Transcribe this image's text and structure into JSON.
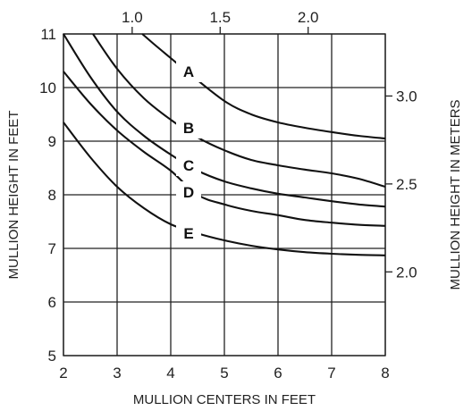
{
  "chart_data": {
    "type": "line",
    "title": "",
    "xlabel": "MULLION CENTERS IN FEET",
    "ylabel": "MULLION HEIGHT IN FEET",
    "ylabel_right": "MULLION HEIGHT IN METERS",
    "xlim": [
      2,
      8
    ],
    "ylim": [
      5,
      11
    ],
    "grid": true,
    "x_ticks": [
      2,
      3,
      4,
      5,
      6,
      7,
      8
    ],
    "y_ticks": [
      5,
      6,
      7,
      8,
      9,
      10,
      11
    ],
    "x_ticks_top": [
      {
        "value": 1.0,
        "label": "1.0"
      },
      {
        "value": 1.5,
        "label": "1.5"
      },
      {
        "value": 2.0,
        "label": "2.0"
      }
    ],
    "y_ticks_right": [
      {
        "value": 2.0,
        "label": "2.0"
      },
      {
        "value": 2.5,
        "label": "2.5"
      },
      {
        "value": 3.0,
        "label": "3.0"
      }
    ],
    "series": [
      {
        "name": "A",
        "label_at": [
          4.5,
          10.3
        ],
        "x": [
          3.47,
          3.7,
          4.0,
          4.3,
          5.0,
          5.5,
          6.0,
          6.5,
          7.0,
          7.5,
          8.0
        ],
        "y": [
          11.0,
          10.8,
          10.55,
          10.3,
          9.75,
          9.5,
          9.35,
          9.25,
          9.17,
          9.1,
          9.05
        ]
      },
      {
        "name": "B",
        "label_at": [
          4.5,
          9.25
        ],
        "x": [
          2.55,
          3.0,
          3.5,
          4.0,
          4.5,
          5.0,
          5.5,
          6.0,
          6.5,
          7.0,
          7.5,
          8.0
        ],
        "y": [
          11.0,
          10.35,
          9.8,
          9.4,
          9.07,
          8.83,
          8.65,
          8.55,
          8.47,
          8.4,
          8.3,
          8.15
        ]
      },
      {
        "name": "C",
        "label_at": [
          4.5,
          8.55
        ],
        "x": [
          2.0,
          2.5,
          3.0,
          3.5,
          4.0,
          4.5,
          5.0,
          5.5,
          6.0,
          6.5,
          7.0,
          7.5,
          8.0
        ],
        "y": [
          11.0,
          10.2,
          9.55,
          9.1,
          8.75,
          8.45,
          8.25,
          8.12,
          8.02,
          7.95,
          7.88,
          7.82,
          7.78
        ]
      },
      {
        "name": "D",
        "label_at": [
          4.5,
          8.05
        ],
        "x": [
          2.0,
          2.5,
          3.0,
          3.5,
          4.0,
          4.5,
          5.0,
          5.5,
          6.0,
          6.5,
          7.0,
          7.5,
          8.0
        ],
        "y": [
          10.3,
          9.7,
          9.2,
          8.8,
          8.45,
          8.0,
          7.82,
          7.7,
          7.62,
          7.53,
          7.48,
          7.44,
          7.42
        ]
      },
      {
        "name": "E",
        "label_at": [
          4.5,
          7.28
        ],
        "x": [
          2.0,
          2.5,
          3.0,
          3.5,
          4.0,
          4.5,
          5.0,
          5.5,
          6.0,
          6.5,
          7.0,
          7.5,
          8.0
        ],
        "y": [
          9.35,
          8.7,
          8.15,
          7.75,
          7.45,
          7.28,
          7.15,
          7.05,
          6.98,
          6.93,
          6.9,
          6.88,
          6.87
        ]
      }
    ]
  }
}
